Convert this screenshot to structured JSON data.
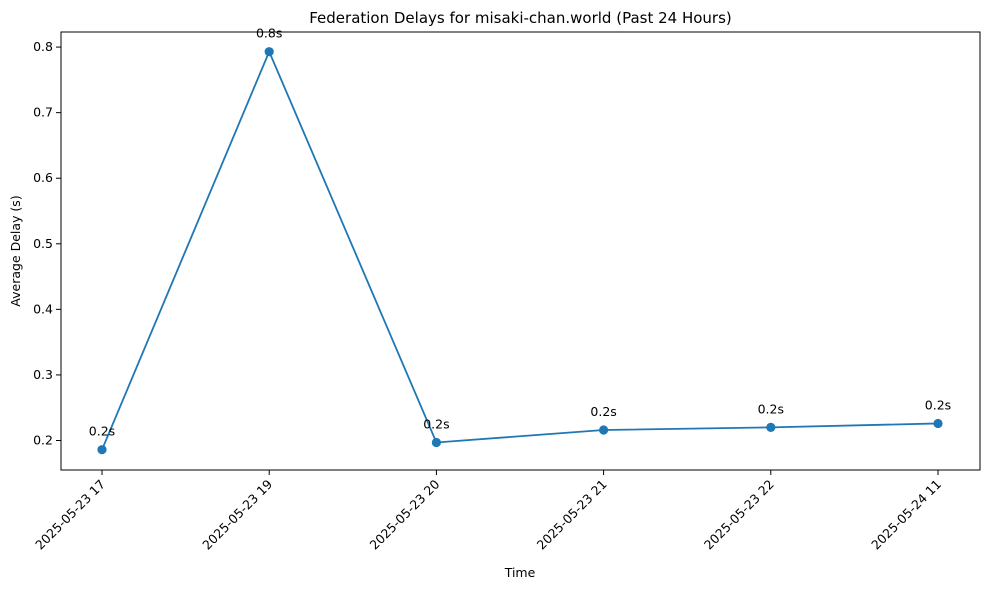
{
  "chart_data": {
    "type": "line",
    "title": "Federation Delays for misaki-chan.world (Past 24 Hours)",
    "xlabel": "Time",
    "ylabel": "Average Delay (s)",
    "categories": [
      "2025-05-23 17",
      "2025-05-23 19",
      "2025-05-23 20",
      "2025-05-23 21",
      "2025-05-23 22",
      "2025-05-24 11"
    ],
    "series": [
      {
        "values": [
          0.186,
          0.793,
          0.197,
          0.216,
          0.22,
          0.226
        ],
        "data_labels": [
          "0.2s",
          "0.8s",
          "0.2s",
          "0.2s",
          "0.2s",
          "0.2s"
        ],
        "color": "#1f77b4",
        "marker": "circle"
      }
    ],
    "ylim": [
      0.155,
      0.823
    ],
    "yticks": [
      0.2,
      0.3,
      0.4,
      0.5,
      0.6,
      0.7,
      0.8
    ],
    "ytick_labels": [
      "0.2",
      "0.3",
      "0.4",
      "0.5",
      "0.6",
      "0.7",
      "0.8"
    ],
    "grid": false,
    "legend": "none"
  }
}
